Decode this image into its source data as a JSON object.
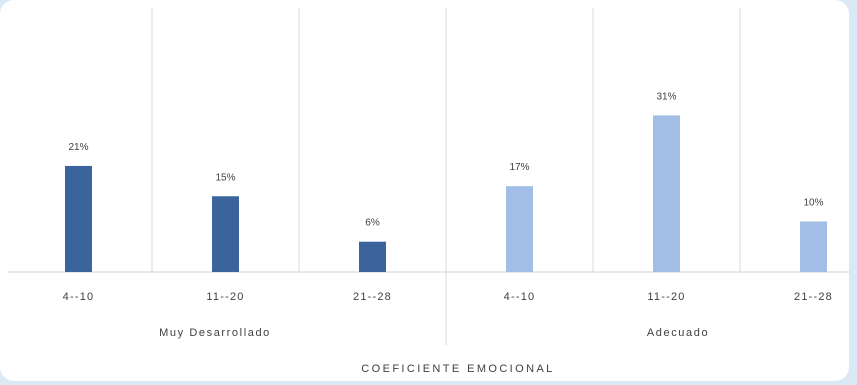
{
  "chart_data": {
    "type": "bar",
    "title": "",
    "xlabel": "COEFICIENTE EMOCIONAL",
    "ylabel": "",
    "ylim": [
      0,
      35
    ],
    "grid": "vertical separators",
    "legend": "none",
    "groups": [
      {
        "name": "Muy Desarrollado",
        "color": "#3c649c"
      },
      {
        "name": "Adecuado",
        "color": "#a2bde6"
      }
    ],
    "categories": [
      "4--10",
      "11--20",
      "21--28",
      "4--10",
      "11--20",
      "21--28"
    ],
    "values": [
      21,
      15,
      6,
      17,
      31,
      10
    ],
    "group_index": [
      0,
      0,
      0,
      1,
      1,
      1
    ],
    "data_labels": [
      "21%",
      "15%",
      "6%",
      "17%",
      "31%",
      "10%"
    ]
  }
}
